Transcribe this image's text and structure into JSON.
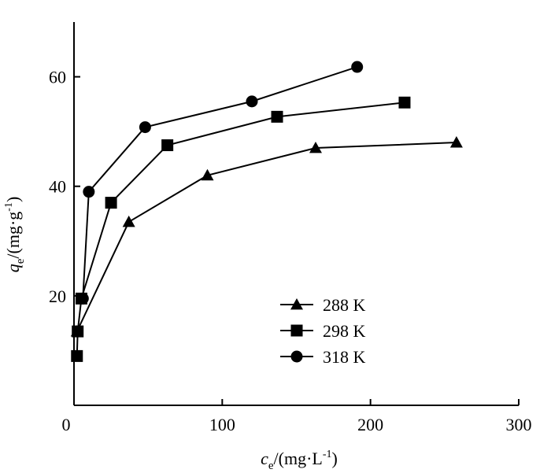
{
  "chart_data": {
    "type": "line",
    "title": "",
    "xlabel": {
      "main": "c",
      "sub": "e",
      "unit_prefix": "/(mg·L",
      "unit_sup": "-1",
      "unit_suffix": ")"
    },
    "ylabel": {
      "main": "q",
      "sub": "e",
      "unit_prefix": "/(mg·g",
      "unit_sup": "-1",
      "unit_suffix": ")"
    },
    "xlim": [
      0,
      300
    ],
    "ylim": [
      0,
      70
    ],
    "xticks": [
      0,
      100,
      200,
      300
    ],
    "yticks": [
      20,
      40,
      60
    ],
    "grid": false,
    "legend_position": "bottom-center",
    "series": [
      {
        "name": "288 K",
        "marker": "triangle",
        "x": [
          2,
          37,
          90,
          163,
          258
        ],
        "y": [
          13.5,
          33.5,
          42,
          47,
          48
        ]
      },
      {
        "name": "298 K",
        "marker": "square",
        "x": [
          2,
          2.5,
          5,
          25,
          63,
          137,
          223
        ],
        "y": [
          9,
          13.5,
          19.5,
          37,
          47.5,
          52.7,
          55.3
        ]
      },
      {
        "name": "318 K",
        "marker": "circle",
        "x": [
          6,
          10,
          48,
          120,
          191
        ],
        "y": [
          19.5,
          39,
          50.8,
          55.5,
          61.8
        ]
      }
    ]
  }
}
